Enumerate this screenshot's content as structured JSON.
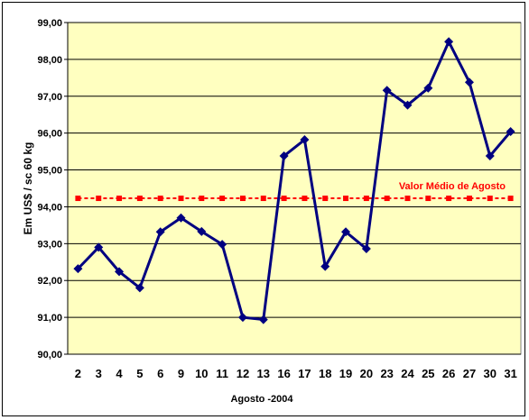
{
  "chart_data": {
    "type": "line",
    "categories": [
      "2",
      "3",
      "4",
      "5",
      "6",
      "9",
      "10",
      "11",
      "12",
      "13",
      "16",
      "17",
      "18",
      "19",
      "20",
      "23",
      "24",
      "25",
      "26",
      "27",
      "30",
      "31"
    ],
    "series": [
      {
        "values": [
          92.32,
          92.9,
          92.24,
          91.8,
          93.32,
          93.7,
          93.33,
          92.98,
          91.0,
          90.94,
          95.38,
          95.82,
          92.38,
          93.32,
          92.86,
          97.16,
          96.76,
          97.22,
          98.48,
          97.38,
          95.38,
          96.04
        ]
      },
      {
        "name": "Valor Médio de Agosto",
        "values": [
          94.23,
          94.23,
          94.23,
          94.23,
          94.23,
          94.23,
          94.23,
          94.23,
          94.23,
          94.23,
          94.23,
          94.23,
          94.23,
          94.23,
          94.23,
          94.23,
          94.23,
          94.23,
          94.23,
          94.23,
          94.23,
          94.23
        ]
      }
    ],
    "yticks": [
      "90,00",
      "91,00",
      "92,00",
      "93,00",
      "94,00",
      "95,00",
      "96,00",
      "97,00",
      "98,00",
      "99,00"
    ],
    "ylim": [
      90,
      99
    ],
    "xlabel": "Agosto -2004",
    "ylabel": "Em US$ / sc 60 kg",
    "annotation": "Valor Médio de Agosto",
    "grid": true,
    "colors": {
      "plot_bg": "#ffffc0",
      "main_series": "#000080",
      "mean_series": "#ff0000",
      "grid": "#000000"
    }
  }
}
